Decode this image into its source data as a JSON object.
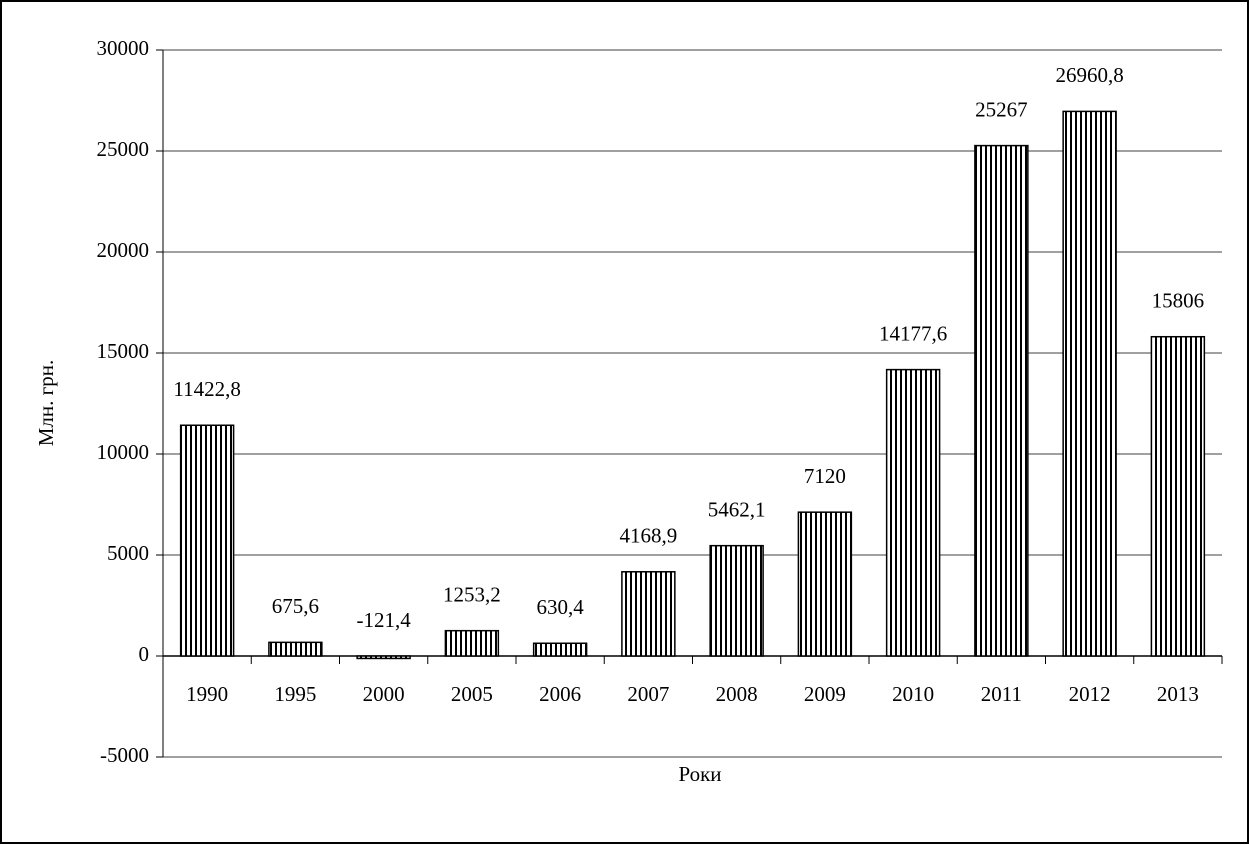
{
  "chart_data": {
    "type": "bar",
    "x_label": "Роки",
    "y_label": "Млн. грн.",
    "categories": [
      "1990",
      "1995",
      "2000",
      "2005",
      "2006",
      "2007",
      "2008",
      "2009",
      "2010",
      "2011",
      "2012",
      "2013"
    ],
    "values": [
      11422.8,
      675.6,
      -121.4,
      1253.2,
      630.4,
      4168.9,
      5462.1,
      7120,
      14177.6,
      25267,
      26960.8,
      15806
    ],
    "value_labels": [
      "11422,8",
      "675,6",
      "-121,4",
      "1253,2",
      "630,4",
      "4168,9",
      "5462,1",
      "7120",
      "14177,6",
      "25267",
      "26960,8",
      "15806"
    ],
    "color": "#000000",
    "ylim": [
      -5000,
      30000
    ],
    "yticks": [
      -5000,
      0,
      5000,
      10000,
      15000,
      20000,
      25000,
      30000
    ],
    "grid": true
  }
}
